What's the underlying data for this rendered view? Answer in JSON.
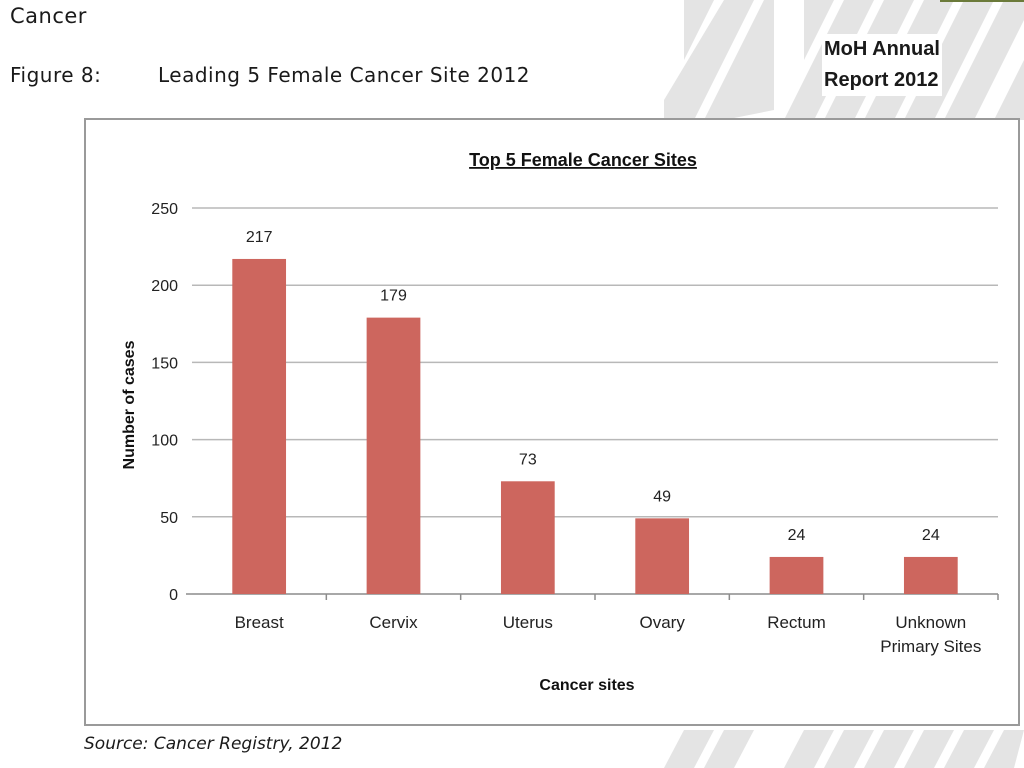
{
  "header": {
    "section": "Cancer",
    "figure_number": "Figure 8:",
    "figure_caption": "Leading 5 Female Cancer Site 2012",
    "brand_line1": "MoH Annual",
    "brand_line2": "Report 2012"
  },
  "source": "Source: Cancer Registry, 2012",
  "colors": {
    "bar": "#cd665e",
    "grid": "#b8b8b8",
    "axis": "#8c8c8c",
    "frame": "#9a9a9a"
  },
  "chart_data": {
    "type": "bar",
    "title": "Top 5  Female Cancer Sites",
    "xlabel": "Cancer sites",
    "ylabel": "Number of cases",
    "categories": [
      "Breast",
      "Cervix",
      "Uterus",
      "Ovary",
      "Rectum",
      "Unknown\nPrimary Sites"
    ],
    "values": [
      217,
      179,
      73,
      49,
      24,
      24
    ],
    "data_labels": [
      "217",
      "179",
      "73",
      "49",
      "24",
      "24"
    ],
    "ylim": [
      0,
      250
    ],
    "yticks": [
      0,
      50,
      100,
      150,
      200,
      250
    ],
    "grid": true,
    "legend": "none"
  }
}
